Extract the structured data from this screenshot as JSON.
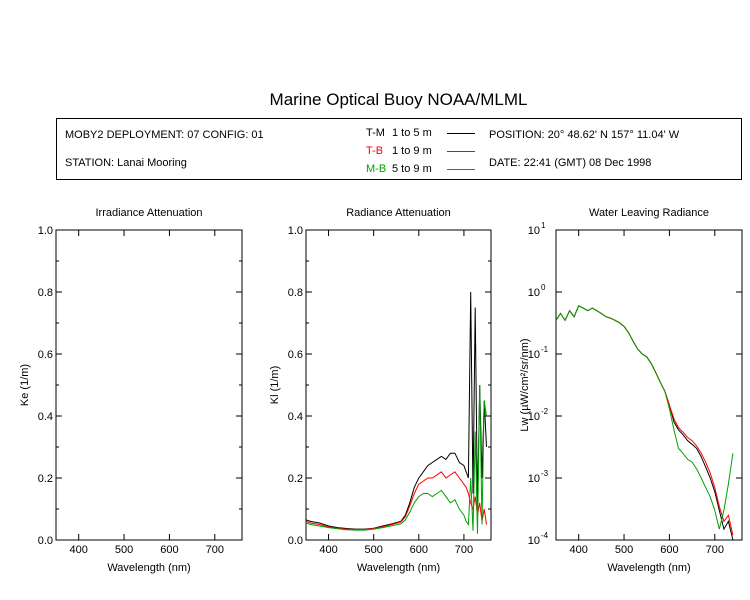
{
  "title": "Marine Optical Buoy NOAA/MLML",
  "info": {
    "deployment": "MOBY2 DEPLOYMENT: 07 CONFIG: 01",
    "station": "STATION: Lanai Mooring",
    "position": "POSITION: 20° 48.62' N   157° 11.04' W",
    "date": "DATE: 22:41 (GMT) 08 Dec 1998"
  },
  "legend": [
    {
      "code": "T-M",
      "range": "1 to 5  m",
      "color": "#000000"
    },
    {
      "code": "T-B",
      "range": "1 to 9  m",
      "color": "#ff0000"
    },
    {
      "code": "M-B",
      "range": "5 to 9  m",
      "color": "#00a000"
    }
  ],
  "chart_data": [
    {
      "type": "line",
      "title": "Irradiance Attenuation",
      "xlabel": "Wavelength (nm)",
      "ylabel": "Ke  (1/m)",
      "xlim": [
        350,
        760
      ],
      "ylim": [
        0,
        1.0
      ],
      "xticks": [
        "400",
        "500",
        "600",
        "700"
      ],
      "yticks": [
        "0.0",
        "0.2",
        "0.4",
        "0.6",
        "0.8",
        "1.0"
      ],
      "series": []
    },
    {
      "type": "line",
      "title": "Radiance Attenuation",
      "xlabel": "Wavelength (nm)",
      "ylabel": "Kl  (1/m)",
      "xlim": [
        350,
        760
      ],
      "ylim": [
        0,
        1.0
      ],
      "xticks": [
        "400",
        "500",
        "600",
        "700"
      ],
      "yticks": [
        "0.0",
        "0.2",
        "0.4",
        "0.6",
        "0.8",
        "1.0"
      ],
      "series": [
        {
          "name": "T-M",
          "color": "#000000",
          "x": [
            350,
            360,
            380,
            400,
            420,
            440,
            460,
            480,
            500,
            520,
            540,
            560,
            570,
            580,
            590,
            600,
            610,
            620,
            630,
            640,
            650,
            660,
            670,
            680,
            690,
            700,
            705,
            710,
            715,
            720,
            725,
            730,
            735,
            740,
            745,
            750
          ],
          "y": [
            0.065,
            0.06,
            0.055,
            0.045,
            0.04,
            0.037,
            0.035,
            0.035,
            0.038,
            0.045,
            0.052,
            0.06,
            0.08,
            0.12,
            0.17,
            0.2,
            0.22,
            0.24,
            0.25,
            0.26,
            0.27,
            0.26,
            0.28,
            0.28,
            0.25,
            0.24,
            0.22,
            0.2,
            0.8,
            0.15,
            0.75,
            0.1,
            0.5,
            0.2,
            0.45,
            0.3
          ]
        },
        {
          "name": "T-B",
          "color": "#ff0000",
          "x": [
            350,
            360,
            380,
            400,
            420,
            440,
            460,
            480,
            500,
            520,
            540,
            560,
            570,
            580,
            590,
            600,
            610,
            620,
            630,
            640,
            650,
            660,
            670,
            680,
            690,
            700,
            705,
            710,
            715,
            720,
            725,
            730,
            735,
            740,
            745,
            750
          ],
          "y": [
            0.06,
            0.055,
            0.05,
            0.042,
            0.038,
            0.035,
            0.034,
            0.034,
            0.037,
            0.043,
            0.05,
            0.058,
            0.075,
            0.11,
            0.15,
            0.18,
            0.19,
            0.2,
            0.2,
            0.21,
            0.22,
            0.2,
            0.21,
            0.22,
            0.2,
            0.18,
            0.17,
            0.15,
            0.12,
            0.1,
            0.14,
            0.08,
            0.12,
            0.06,
            0.1,
            0.05
          ]
        },
        {
          "name": "M-B",
          "color": "#00a000",
          "x": [
            350,
            360,
            380,
            400,
            420,
            440,
            460,
            480,
            500,
            520,
            540,
            560,
            570,
            580,
            590,
            600,
            610,
            620,
            630,
            640,
            650,
            660,
            670,
            680,
            690,
            700,
            705,
            710,
            715,
            720,
            725,
            730,
            735,
            740,
            745,
            750
          ],
          "y": [
            0.055,
            0.05,
            0.045,
            0.04,
            0.036,
            0.033,
            0.032,
            0.032,
            0.035,
            0.04,
            0.046,
            0.052,
            0.065,
            0.09,
            0.12,
            0.14,
            0.15,
            0.15,
            0.14,
            0.15,
            0.16,
            0.14,
            0.12,
            0.13,
            0.1,
            0.08,
            0.06,
            0.05,
            0.2,
            0.03,
            0.35,
            0.02,
            0.5,
            0.05,
            0.45,
            0.4
          ]
        }
      ]
    },
    {
      "type": "line",
      "title": "Water Leaving Radiance",
      "xlabel": "Wavelength (nm)",
      "ylabel": "Lw  (µW/cm²/sr/nm)",
      "xlim": [
        350,
        760
      ],
      "ylim": [
        0.0001,
        10
      ],
      "yscale": "log",
      "xticks": [
        "400",
        "500",
        "600",
        "700"
      ],
      "yticks": [
        "10^1",
        "10^0",
        "10^-1",
        "10^-2",
        "10^-3",
        "10^-4"
      ],
      "series": [
        {
          "name": "T-M",
          "color": "#000000",
          "x": [
            350,
            360,
            370,
            380,
            390,
            400,
            410,
            420,
            430,
            440,
            450,
            460,
            470,
            480,
            490,
            500,
            510,
            520,
            530,
            540,
            550,
            560,
            570,
            580,
            590,
            600,
            610,
            620,
            630,
            640,
            650,
            660,
            670,
            680,
            690,
            700,
            710,
            720,
            730,
            740
          ],
          "y": [
            0.35,
            0.45,
            0.35,
            0.5,
            0.4,
            0.6,
            0.55,
            0.5,
            0.55,
            0.5,
            0.45,
            0.4,
            0.38,
            0.35,
            0.32,
            0.28,
            0.22,
            0.16,
            0.12,
            0.1,
            0.09,
            0.07,
            0.05,
            0.035,
            0.025,
            0.015,
            0.008,
            0.006,
            0.005,
            0.004,
            0.0035,
            0.003,
            0.0022,
            0.0015,
            0.001,
            0.0006,
            0.0003,
            0.00015,
            0.0002,
            0.0001
          ]
        },
        {
          "name": "T-B",
          "color": "#ff0000",
          "x": [
            350,
            360,
            370,
            380,
            390,
            400,
            410,
            420,
            430,
            440,
            450,
            460,
            470,
            480,
            490,
            500,
            510,
            520,
            530,
            540,
            550,
            560,
            570,
            580,
            590,
            600,
            610,
            620,
            630,
            640,
            650,
            660,
            670,
            680,
            690,
            700,
            710,
            720,
            730,
            740
          ],
          "y": [
            0.35,
            0.45,
            0.35,
            0.5,
            0.4,
            0.6,
            0.55,
            0.5,
            0.55,
            0.5,
            0.45,
            0.4,
            0.38,
            0.35,
            0.32,
            0.28,
            0.22,
            0.16,
            0.12,
            0.1,
            0.09,
            0.07,
            0.05,
            0.035,
            0.025,
            0.015,
            0.009,
            0.0065,
            0.0055,
            0.0045,
            0.004,
            0.0033,
            0.0025,
            0.0018,
            0.0012,
            0.0007,
            0.00035,
            0.0002,
            0.00025,
            0.00012
          ]
        },
        {
          "name": "M-B",
          "color": "#00a000",
          "x": [
            350,
            360,
            370,
            380,
            390,
            400,
            410,
            420,
            430,
            440,
            450,
            460,
            470,
            480,
            490,
            500,
            510,
            520,
            530,
            540,
            550,
            560,
            570,
            580,
            590,
            600,
            610,
            620,
            630,
            640,
            650,
            660,
            670,
            680,
            690,
            700,
            710,
            720,
            730,
            740
          ],
          "y": [
            0.35,
            0.45,
            0.35,
            0.5,
            0.4,
            0.6,
            0.55,
            0.5,
            0.55,
            0.5,
            0.45,
            0.4,
            0.38,
            0.35,
            0.32,
            0.28,
            0.22,
            0.16,
            0.12,
            0.1,
            0.09,
            0.07,
            0.05,
            0.035,
            0.025,
            0.013,
            0.006,
            0.003,
            0.0025,
            0.002,
            0.0018,
            0.0014,
            0.001,
            0.0007,
            0.0005,
            0.0003,
            0.00015,
            0.0003,
            0.0008,
            0.0025
          ]
        }
      ]
    }
  ]
}
